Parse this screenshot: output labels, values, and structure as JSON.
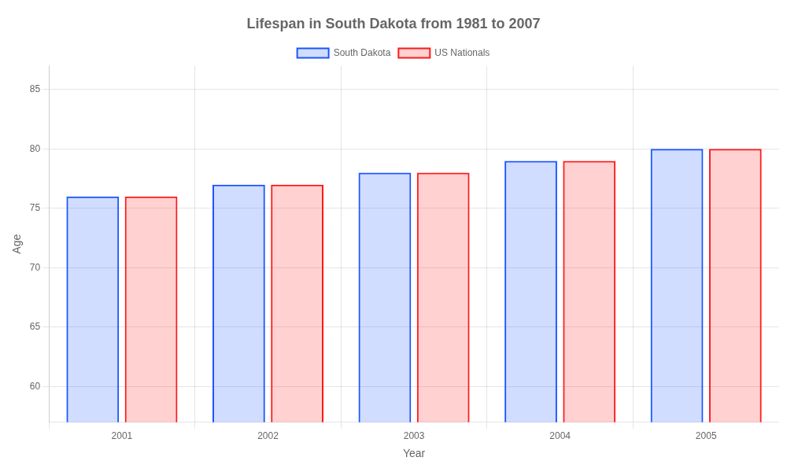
{
  "chart_data": {
    "type": "bar",
    "title": "Lifespan in South Dakota from 1981 to 2007",
    "x_label": "Year",
    "y_label": "Age",
    "categories": [
      2001,
      2002,
      2003,
      2004,
      2005
    ],
    "series": [
      {
        "name": "South Dakota",
        "color": "#1a56ff",
        "values": [
          76,
          77,
          78,
          79,
          80
        ]
      },
      {
        "name": "US Nationals",
        "color": "#ff1a1a",
        "values": [
          76,
          77,
          78,
          79,
          80
        ]
      }
    ],
    "ylim": [
      57,
      87
    ],
    "yticks": [
      60,
      65,
      70,
      75,
      80,
      85
    ],
    "grid": true,
    "legend": "top"
  }
}
